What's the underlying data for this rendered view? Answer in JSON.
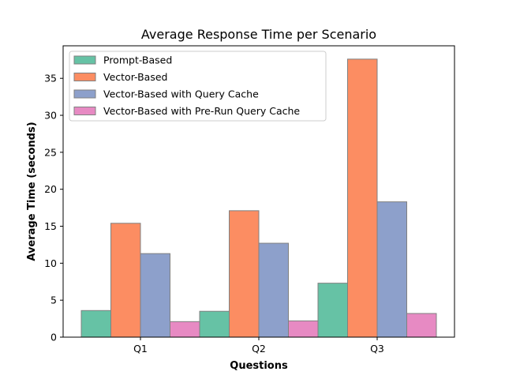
{
  "chart_data": {
    "type": "bar",
    "title": "Average Response Time per Scenario",
    "xlabel": "Questions",
    "ylabel": "Average Time (seconds)",
    "categories": [
      "Q1",
      "Q2",
      "Q3"
    ],
    "ylim": [
      0,
      39.4
    ],
    "yticks": [
      0,
      5,
      10,
      15,
      20,
      25,
      30,
      35
    ],
    "grid": false,
    "legend_position": "upper-left",
    "bar_edge_color": "#808080",
    "series": [
      {
        "name": "Prompt-Based",
        "color": "#66c2a5",
        "values": [
          3.6,
          3.5,
          7.3
        ]
      },
      {
        "name": "Vector-Based",
        "color": "#fc8d62",
        "values": [
          15.4,
          17.1,
          37.6
        ]
      },
      {
        "name": "Vector-Based with Query Cache",
        "color": "#8da0cb",
        "values": [
          11.3,
          12.7,
          18.3
        ]
      },
      {
        "name": "Vector-Based with Pre-Run Query Cache",
        "color": "#e78ac3",
        "values": [
          2.1,
          2.2,
          3.2
        ]
      }
    ]
  }
}
